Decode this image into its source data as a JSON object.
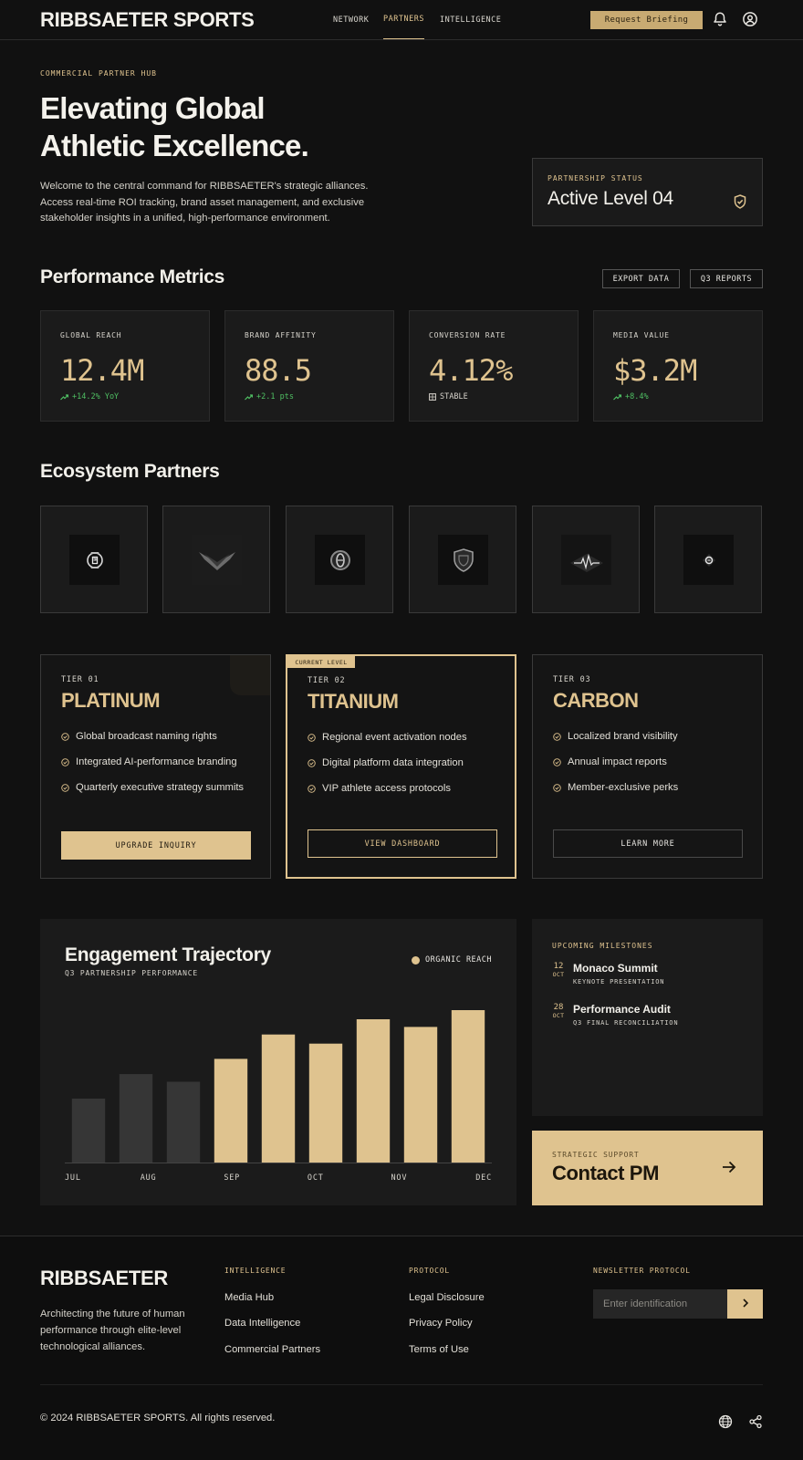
{
  "header": {
    "brand": "RIBBSAETER SPORTS",
    "nav": [
      {
        "label": "NETWORK",
        "active": false
      },
      {
        "label": "PARTNERS",
        "active": true
      },
      {
        "label": "INTELLIGENCE",
        "active": false
      }
    ],
    "request_button": "Request Briefing",
    "icons": [
      "bell-icon",
      "account-icon"
    ]
  },
  "hero": {
    "eyebrow": "COMMERCIAL PARTNER HUB",
    "title": "Elevating Global Athletic Excellence.",
    "description": "Welcome to the central command for RIBBSAETER's strategic alliances. Access real-time ROI tracking, brand asset management, and exclusive stakeholder insights in a unified, high-performance environment."
  },
  "status": {
    "label": "PARTNERSHIP STATUS",
    "value": "Active Level 04",
    "icon": "shield-check-icon"
  },
  "metrics_section": {
    "title": "Performance Metrics",
    "export_button": "EXPORT DATA",
    "reports_button": "Q3 REPORTS",
    "items": [
      {
        "label": "GLOBAL REACH",
        "value": "12.4M",
        "delta": "+14.2% YoY",
        "icon": "trend-up-icon"
      },
      {
        "label": "BRAND AFFINITY",
        "value": "88.5",
        "delta": "+2.1 pts",
        "icon": "trend-up-icon"
      },
      {
        "label": "CONVERSION RATE",
        "value": "4.12%",
        "delta": "STABLE",
        "icon": "stable-icon"
      },
      {
        "label": "MEDIA VALUE",
        "value": "$3.2M",
        "delta": "+8.4%",
        "icon": "trend-up-icon"
      }
    ]
  },
  "partners_section": {
    "title": "Ecosystem Partners",
    "logos": [
      "watch-badge-logo",
      "wing-chevron-logo",
      "ring-emblem-logo",
      "shield-crest-logo",
      "pulse-wave-logo",
      "diamond-mark-logo"
    ]
  },
  "tiers": [
    {
      "label": "TIER 01",
      "name": "PLATINUM",
      "features": [
        "Global broadcast naming rights",
        "Integrated AI-performance branding",
        "Quarterly executive strategy summits"
      ],
      "button": "UPGRADE INQUIRY"
    },
    {
      "label": "TIER 02",
      "name": "TITANIUM",
      "badge": "CURRENT LEVEL",
      "features": [
        "Regional event activation nodes",
        "Digital platform data integration",
        "VIP athlete access protocols"
      ],
      "button": "VIEW DASHBOARD"
    },
    {
      "label": "TIER 03",
      "name": "CARBON",
      "features": [
        "Localized brand visibility",
        "Annual impact reports",
        "Member-exclusive perks"
      ],
      "button": "LEARN MORE"
    }
  ],
  "chart_data": {
    "type": "bar",
    "title": "Engagement Trajectory",
    "subtitle": "Q3 PARTNERSHIP PERFORMANCE",
    "legend": [
      {
        "name": "ORGANIC REACH",
        "color": "#dfc38f"
      }
    ],
    "legend_position": "top-right",
    "x_tick_labels": [
      "JUL",
      "AUG",
      "SEP",
      "OCT",
      "NOV",
      "DEC"
    ],
    "values": [
      42,
      58,
      53,
      68,
      84,
      78,
      94,
      89,
      100
    ],
    "highlight_from_index": 3,
    "colors": {
      "muted": "#363636",
      "highlight": "#dfc38f"
    },
    "ylim": [
      0,
      100
    ],
    "grid": false
  },
  "milestones": {
    "title": "UPCOMING MILESTONES",
    "items": [
      {
        "day": "12",
        "month": "OCT",
        "title": "Monaco Summit",
        "subtitle": "KEYNOTE PRESENTATION"
      },
      {
        "day": "28",
        "month": "OCT",
        "title": "Performance Audit",
        "subtitle": "Q3 FINAL RECONCILIATION"
      }
    ]
  },
  "contact": {
    "eyebrow": "STRATEGIC SUPPORT",
    "title": "Contact PM",
    "icon": "arrow-right-icon"
  },
  "footer": {
    "brand": "RIBBSAETER",
    "description": "Architecting the future of human performance through elite-level technological alliances.",
    "columns": [
      {
        "title": "INTELLIGENCE",
        "links": [
          "Media Hub",
          "Data Intelligence",
          "Commercial Partners"
        ]
      },
      {
        "title": "PROTOCOL",
        "links": [
          "Legal Disclosure",
          "Privacy Policy",
          "Terms of Use"
        ]
      }
    ],
    "newsletter": {
      "title": "NEWSLETTER PROTOCOL",
      "placeholder": "Enter identification",
      "submit_icon": "chevron-right-icon"
    },
    "copyright": "© 2024 RIBBSAETER SPORTS. All rights reserved.",
    "icons": [
      "globe-icon",
      "share-icon"
    ]
  },
  "colors": {
    "background": "#111111",
    "surface": "#1b1b1b",
    "accent": "#dfc38f",
    "positive": "#4fbf63"
  }
}
